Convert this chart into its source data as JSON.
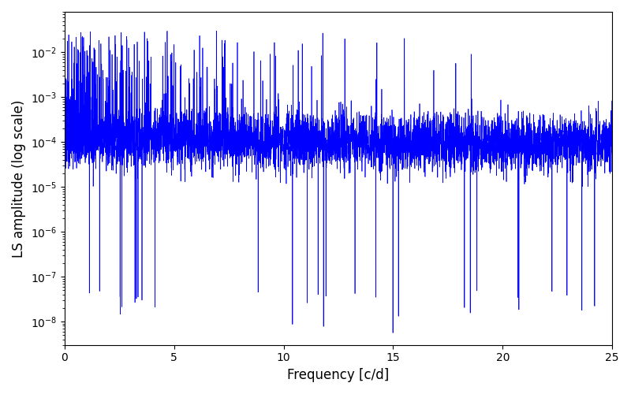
{
  "xlabel": "Frequency [c/d]",
  "ylabel": "LS amplitude (log scale)",
  "xlim": [
    0,
    25
  ],
  "ylim": [
    3e-09,
    0.08
  ],
  "line_color": "#0000ff",
  "line_width": 0.5,
  "background_color": "#ffffff",
  "n_frequencies": 5000,
  "freq_max": 25.0,
  "seed": 42,
  "base_amplitude": 0.0001,
  "envelope_decay": 0.06
}
